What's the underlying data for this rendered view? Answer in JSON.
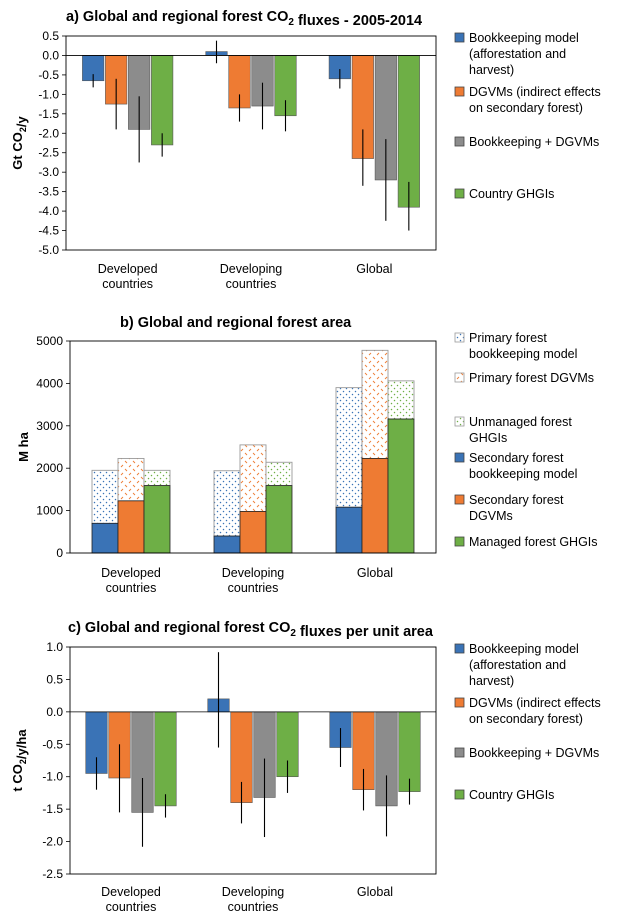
{
  "chart_data": [
    {
      "type": "bar",
      "title": "a) Global and regional forest CO2 fluxes - 2005-2014",
      "ylabel": "Gt CO2/y",
      "ylim": [
        -5.0,
        0.5
      ],
      "ytick_step": 0.5,
      "categories": [
        "Developed countries",
        "Developing countries",
        "Global"
      ],
      "category_lines": [
        [
          "Developed",
          "countries"
        ],
        [
          "Developing",
          "countries"
        ],
        [
          "Global"
        ]
      ],
      "series": [
        {
          "name": "Bookkeeping model (afforestation and harvest)",
          "legend_lines": [
            "Bookkeeping model",
            "(afforestation and",
            "harvest)"
          ],
          "color": "#3a73b6",
          "values": [
            -0.65,
            0.1,
            -0.6
          ],
          "err_low": [
            -0.82,
            -0.2,
            -0.85
          ],
          "err_high": [
            -0.48,
            0.38,
            -0.35
          ]
        },
        {
          "name": "DGVMs (indirect effects on secondary forest)",
          "legend_lines": [
            "DGVMs (indirect effects",
            "on secondary forest)"
          ],
          "color": "#ee7b33",
          "values": [
            -1.25,
            -1.35,
            -2.65
          ],
          "err_low": [
            -1.9,
            -1.7,
            -3.35
          ],
          "err_high": [
            -0.6,
            -1.0,
            -1.9
          ]
        },
        {
          "name": "Bookkeeping + DGVMs",
          "legend_lines": [
            "Bookkeeping + DGVMs"
          ],
          "color": "#8c8c8c",
          "values": [
            -1.9,
            -1.3,
            -3.2
          ],
          "err_low": [
            -2.75,
            -1.9,
            -4.25
          ],
          "err_high": [
            -1.05,
            -0.7,
            -2.15
          ]
        },
        {
          "name": "Country GHGIs",
          "legend_lines": [
            "Country GHGIs"
          ],
          "color": "#6eaf46",
          "values": [
            -2.3,
            -1.55,
            -3.9
          ],
          "err_low": [
            -2.6,
            -1.95,
            -4.5
          ],
          "err_high": [
            -2.0,
            -1.15,
            -3.25
          ]
        }
      ]
    },
    {
      "type": "bar",
      "stacked": true,
      "title": "b) Global and regional forest area",
      "ylabel": "M ha",
      "ylim": [
        0,
        5000
      ],
      "ytick_step": 1000,
      "categories": [
        "Developed countries",
        "Developing countries",
        "Global"
      ],
      "category_lines": [
        [
          "Developed",
          "countries"
        ],
        [
          "Developing",
          "countries"
        ],
        [
          "Global"
        ]
      ],
      "groups": [
        {
          "name": "Bookkeeping model",
          "lower_color": "#3a73b6",
          "upper_pattern": "dots-blue",
          "lower": [
            700,
            400,
            1080
          ],
          "total": [
            1950,
            1940,
            3900
          ]
        },
        {
          "name": "DGVMs",
          "lower_color": "#ee7b33",
          "upper_pattern": "dash-orange",
          "lower": [
            1230,
            980,
            2230
          ],
          "total": [
            2230,
            2550,
            4780
          ]
        },
        {
          "name": "GHGIs",
          "lower_color": "#6eaf46",
          "upper_pattern": "dots-green",
          "lower": [
            1590,
            1590,
            3160
          ],
          "total": [
            1950,
            2140,
            4060
          ]
        }
      ],
      "legend": [
        {
          "name": "Primary forest bookkeeping model",
          "lines": [
            "Primary forest",
            "bookkeeping model"
          ],
          "swatch": "dots-blue"
        },
        {
          "name": "Primary forest DGVMs",
          "lines": [
            "Primary forest DGVMs"
          ],
          "swatch": "dash-orange"
        },
        {
          "name": "Unmanaged forest GHGIs",
          "lines": [
            "Unmanaged forest",
            "GHGIs"
          ],
          "swatch": "dots-green"
        },
        {
          "name": "Secondary forest bookkeeping model",
          "lines": [
            "Secondary forest",
            "bookkeeping model"
          ],
          "swatch": "#3a73b6"
        },
        {
          "name": "Secondary forest DGVMs",
          "lines": [
            "Secondary forest",
            "DGVMs"
          ],
          "swatch": "#ee7b33"
        },
        {
          "name": "Managed forest GHGIs",
          "lines": [
            "Managed forest GHGIs"
          ],
          "swatch": "#6eaf46"
        }
      ]
    },
    {
      "type": "bar",
      "title": "c) Global and regional forest CO2 fluxes per unit area",
      "ylabel": "t CO2/y/ha",
      "ylim": [
        -2.5,
        1.0
      ],
      "ytick_step": 0.5,
      "categories": [
        "Developed countries",
        "Developing countries",
        "Global"
      ],
      "category_lines": [
        [
          "Developed",
          "countries"
        ],
        [
          "Developing",
          "countries"
        ],
        [
          "Global"
        ]
      ],
      "series": [
        {
          "name": "Bookkeeping model (afforestation and harvest)",
          "legend_lines": [
            "Bookkeeping model",
            "(afforestation and",
            "harvest)"
          ],
          "color": "#3a73b6",
          "values": [
            -0.95,
            0.2,
            -0.55
          ],
          "err_low": [
            -1.2,
            -0.55,
            -0.85
          ],
          "err_high": [
            -0.7,
            0.92,
            -0.25
          ]
        },
        {
          "name": "DGVMs (indirect effects on secondary forest)",
          "legend_lines": [
            "DGVMs (indirect effects",
            "on secondary forest)"
          ],
          "color": "#ee7b33",
          "values": [
            -1.02,
            -1.4,
            -1.2
          ],
          "err_low": [
            -1.55,
            -1.72,
            -1.52
          ],
          "err_high": [
            -0.5,
            -1.08,
            -0.88
          ]
        },
        {
          "name": "Bookkeeping + DGVMs",
          "legend_lines": [
            "Bookkeeping + DGVMs"
          ],
          "color": "#8c8c8c",
          "values": [
            -1.55,
            -1.32,
            -1.45
          ],
          "err_low": [
            -2.08,
            -1.93,
            -1.92
          ],
          "err_high": [
            -1.02,
            -0.72,
            -0.98
          ]
        },
        {
          "name": "Country GHGIs",
          "legend_lines": [
            "Country GHGIs"
          ],
          "color": "#6eaf46",
          "values": [
            -1.45,
            -1.0,
            -1.23
          ],
          "err_low": [
            -1.63,
            -1.25,
            -1.43
          ],
          "err_high": [
            -1.27,
            -0.75,
            -1.03
          ]
        }
      ]
    }
  ]
}
